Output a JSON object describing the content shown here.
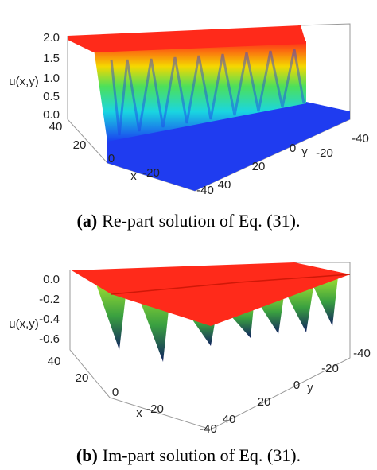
{
  "panels": [
    {
      "z_label": "u(x,y)",
      "z_ticks": [
        "2.0",
        "1.5",
        "1.0",
        "0.5",
        "0.0"
      ],
      "x_label": "x",
      "x_ticks": [
        "40",
        "20",
        "0",
        "-20",
        "-40"
      ],
      "y_label": "y",
      "y_ticks": [
        "-40",
        "-20",
        "0",
        "20",
        "40"
      ],
      "caption": {
        "label": "(a)",
        "text": "Re-part solution of Eq. (31)."
      }
    },
    {
      "z_label": "u(x,y)",
      "z_ticks": [
        "0.0",
        "-0.2",
        "-0.4",
        "-0.6"
      ],
      "x_label": "x",
      "x_ticks": [
        "40",
        "20",
        "0",
        "-20",
        "-40"
      ],
      "y_label": "y",
      "y_ticks": [
        "-40",
        "-20",
        "0",
        "20",
        "40"
      ],
      "caption": {
        "label": "(b)",
        "text": "Im-part solution of Eq. (31)."
      }
    }
  ]
}
